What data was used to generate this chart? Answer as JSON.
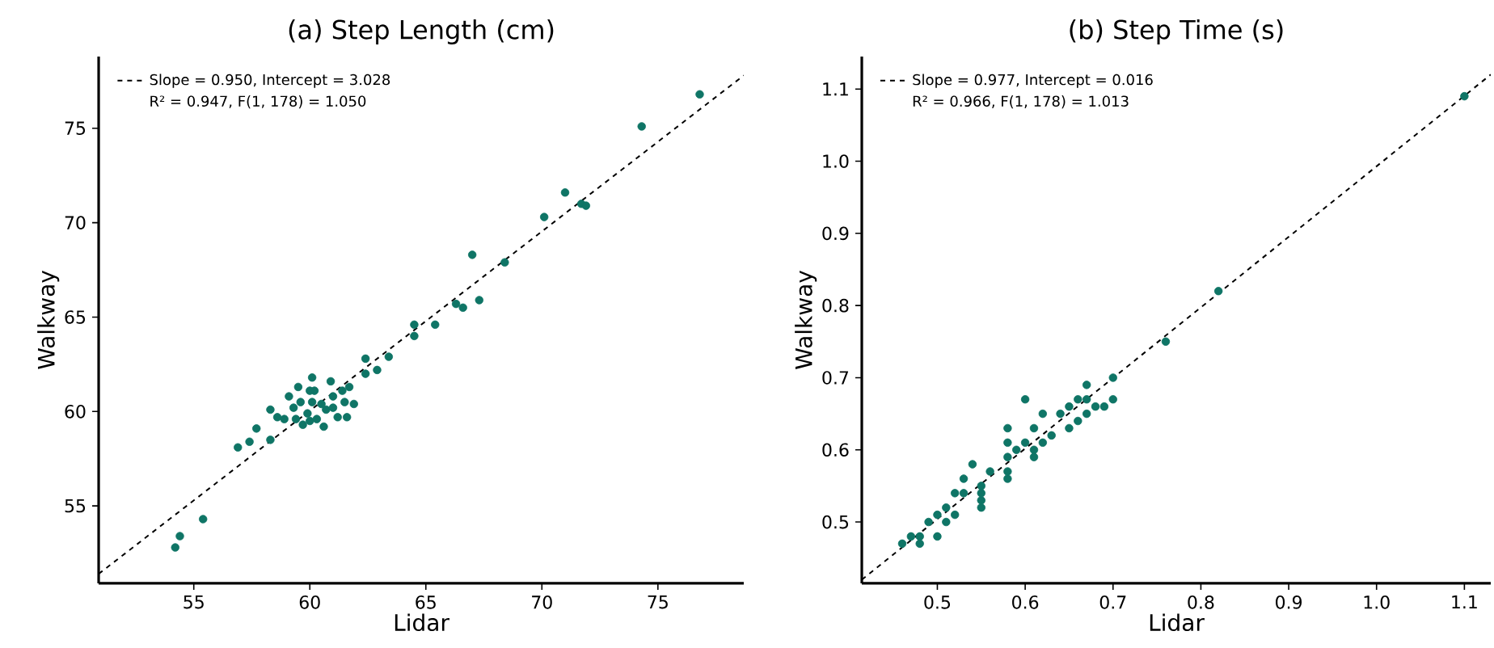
{
  "chart_data": [
    {
      "type": "scatter",
      "title": "(a) Step Length (cm)",
      "xlabel": "Lidar",
      "ylabel": "Walkway",
      "xlim": [
        50.9,
        78.7
      ],
      "ylim": [
        50.9,
        78.8
      ],
      "xticks": [
        55,
        60,
        65,
        70,
        75
      ],
      "yticks": [
        55,
        60,
        65,
        70,
        75
      ],
      "legend": "top left",
      "annotations": [
        "R² = 0.947, F(1, 178) = 1.050"
      ],
      "series": [
        {
          "marker": "circle",
          "color": "#0f7566",
          "x": [
            76.8,
            74.3,
            71.0,
            71.7,
            71.9,
            70.1,
            67.0,
            68.4,
            66.3,
            66.6,
            67.3,
            64.5,
            64.5,
            65.4,
            62.4,
            62.4,
            62.9,
            63.4,
            55.4,
            54.4,
            54.2,
            56.9,
            57.4,
            57.7,
            58.3,
            58.3,
            58.6,
            59.1,
            59.5,
            60.1,
            59.7,
            60.0,
            60.6,
            60.2,
            60.9,
            61.2,
            61.6,
            61.7,
            61.9,
            61.0,
            60.5,
            59.9,
            59.3,
            58.9,
            61.4,
            60.7,
            61.5,
            59.6,
            60.1,
            60.3,
            61.0,
            59.4,
            60.0
          ],
          "values": [
            76.8,
            75.1,
            71.6,
            71.0,
            70.9,
            70.3,
            68.3,
            67.9,
            65.7,
            65.5,
            65.9,
            64.6,
            64.0,
            64.6,
            62.8,
            62.0,
            62.2,
            62.9,
            54.3,
            53.4,
            52.8,
            58.1,
            58.4,
            59.1,
            58.5,
            60.1,
            59.7,
            60.8,
            61.3,
            61.8,
            59.3,
            59.5,
            59.2,
            61.1,
            61.6,
            59.7,
            59.7,
            61.3,
            60.4,
            60.8,
            60.4,
            59.9,
            60.2,
            59.6,
            61.1,
            60.1,
            60.5,
            60.5,
            60.5,
            59.6,
            60.2,
            59.6,
            61.1
          ]
        },
        {
          "type": "line",
          "name": "Slope = 0.950, Intercept = 3.028",
          "color": "#000000",
          "line_style": "dashed",
          "marker": "none",
          "x": [
            50.9,
            78.7
          ],
          "values": [
            51.4,
            77.8
          ]
        }
      ]
    },
    {
      "type": "scatter",
      "title": "(b) Step Time (s)",
      "xlabel": "Lidar",
      "ylabel": "Walkway",
      "xlim": [
        0.414,
        1.13
      ],
      "ylim": [
        0.415,
        1.145
      ],
      "xticks": [
        0.5,
        0.6,
        0.7,
        0.8,
        0.9,
        {
          "value": 1.0,
          "label": "1.0"
        },
        1.1
      ],
      "yticks": [
        0.5,
        0.6,
        0.7,
        0.8,
        0.9,
        {
          "value": 1.0,
          "label": "1.0"
        },
        1.1
      ],
      "legend": "top left",
      "annotations": [
        "R² = 0.966, F(1, 178) = 1.013"
      ],
      "series": [
        {
          "marker": "circle",
          "color": "#0f7566",
          "x": [
            1.1,
            0.82,
            0.76,
            0.7,
            0.7,
            0.67,
            0.6,
            0.58,
            0.58,
            0.54,
            0.53,
            0.46,
            0.47,
            0.48,
            0.5,
            0.49,
            0.5,
            0.51,
            0.51,
            0.52,
            0.53,
            0.55,
            0.55,
            0.55,
            0.56,
            0.58,
            0.58,
            0.58,
            0.59,
            0.6,
            0.61,
            0.61,
            0.61,
            0.62,
            0.62,
            0.63,
            0.64,
            0.65,
            0.65,
            0.66,
            0.67,
            0.67,
            0.68,
            0.69,
            0.66,
            0.52,
            0.55,
            0.48
          ],
          "values": [
            1.09,
            0.82,
            0.75,
            0.7,
            0.67,
            0.69,
            0.67,
            0.63,
            0.61,
            0.58,
            0.56,
            0.47,
            0.48,
            0.47,
            0.48,
            0.5,
            0.51,
            0.52,
            0.5,
            0.51,
            0.54,
            0.52,
            0.53,
            0.55,
            0.57,
            0.56,
            0.57,
            0.59,
            0.6,
            0.61,
            0.6,
            0.59,
            0.63,
            0.65,
            0.61,
            0.62,
            0.65,
            0.66,
            0.63,
            0.64,
            0.67,
            0.65,
            0.66,
            0.66,
            0.67,
            0.54,
            0.54,
            0.48
          ]
        },
        {
          "type": "line",
          "name": "Slope = 0.977, Intercept = 0.016",
          "color": "#000000",
          "line_style": "dashed",
          "marker": "none",
          "x": [
            0.414,
            1.13
          ],
          "values": [
            0.42,
            1.12
          ]
        }
      ]
    }
  ]
}
